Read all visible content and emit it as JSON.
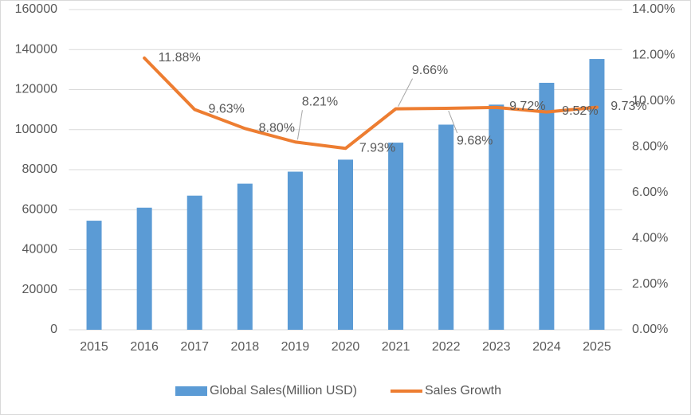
{
  "chart_data": {
    "type": "bar-line",
    "categories": [
      "2015",
      "2016",
      "2017",
      "2018",
      "2019",
      "2020",
      "2021",
      "2022",
      "2023",
      "2024",
      "2025"
    ],
    "series": [
      {
        "name": "Global Sales(Million USD)",
        "type": "bar",
        "color": "#5b9bd5",
        "values": [
          54500,
          61000,
          67000,
          73000,
          79000,
          85000,
          93500,
          102500,
          112500,
          123400,
          135300
        ]
      },
      {
        "name": "Sales Growth",
        "type": "line",
        "axis": "y2",
        "color": "#ed7d31",
        "values": [
          null,
          11.88,
          9.63,
          8.8,
          8.21,
          7.93,
          9.66,
          9.68,
          9.72,
          9.52,
          9.73
        ],
        "value_labels": [
          null,
          "11.88%",
          "9.63%",
          "8.80%",
          "8.21%",
          "7.93%",
          "9.66%",
          "9.68%",
          "9.72%",
          "9.52%",
          "9.73%"
        ]
      }
    ],
    "ylim": [
      0,
      160000
    ],
    "yticks": [
      0,
      20000,
      40000,
      60000,
      80000,
      100000,
      120000,
      140000,
      160000
    ],
    "y2lim": [
      0,
      14
    ],
    "y2ticks": [
      {
        "value": 0,
        "label": "0.00%"
      },
      {
        "value": 2,
        "label": "2.00%"
      },
      {
        "value": 4,
        "label": "4.00%"
      },
      {
        "value": 6,
        "label": "6.00%"
      },
      {
        "value": 8,
        "label": "8.00%"
      },
      {
        "value": 10,
        "label": "10.00%"
      },
      {
        "value": 12,
        "label": "12.00%"
      },
      {
        "value": 14,
        "label": "14.00%"
      }
    ],
    "grid": true,
    "legend": "bottom"
  }
}
